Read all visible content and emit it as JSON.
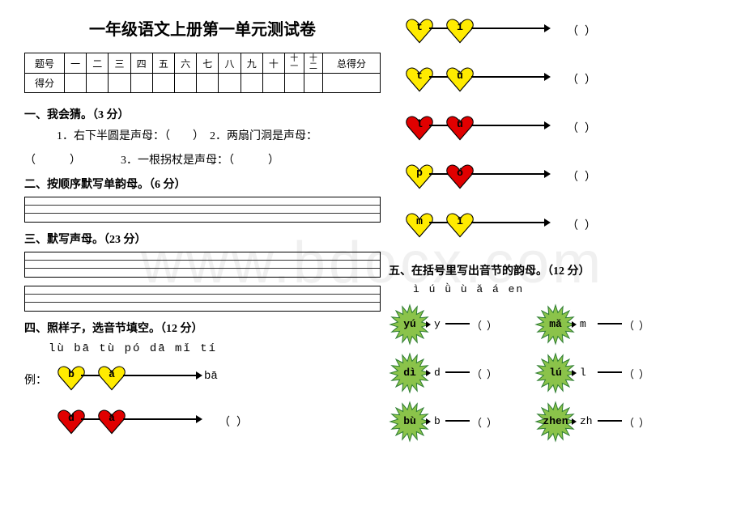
{
  "watermark": "www.bdocx.com",
  "title": "一年级语文上册第一单元测试卷",
  "score_table": {
    "row1": [
      "题号",
      "一",
      "二",
      "三",
      "四",
      "五",
      "六",
      "七",
      "八",
      "九",
      "十",
      "十\n一",
      "十\n二",
      "总得分"
    ],
    "row2_label": "得分"
  },
  "q1": {
    "title": "一、我会猜。（3 分）",
    "line1": "1．右下半圆是声母：（　　）　2．两扇门洞是声母：",
    "line2": "（　　　）　　　　3．一根拐杖是声母：（　　　）"
  },
  "q2": {
    "title": "二、按顺序默写单韵母。（6 分）"
  },
  "q3": {
    "title": "三、默写声母。（23 分）"
  },
  "q4": {
    "title": "四、照样子，选音节填空。（12 分）",
    "options": "lù   bā   tù   pó   dā   mǐ   tí",
    "example_label": "例：",
    "example": {
      "h1": "b",
      "h2": "ā",
      "result": "bā"
    },
    "rows": [
      {
        "h1": "d",
        "h2": "ā",
        "c1": "#e00000",
        "c2": "#e00000"
      },
      {
        "h1": "t",
        "h2": "í",
        "c1": "#ffeb00",
        "c2": "#ffeb00"
      },
      {
        "h1": "t",
        "h2": "ù",
        "c1": "#ffeb00",
        "c2": "#ffeb00"
      },
      {
        "h1": "l",
        "h2": "ù",
        "c1": "#e00000",
        "c2": "#e00000"
      },
      {
        "h1": "p",
        "h2": "ó",
        "c1": "#ffeb00",
        "c2": "#e00000"
      },
      {
        "h1": "m",
        "h2": "ǐ",
        "c1": "#ffeb00",
        "c2": "#ffeb00"
      }
    ]
  },
  "q5": {
    "title": "五、在括号里写出音节的韵母。（12 分）",
    "letters": "ì    ú    ǜ    ù    ǎ    á    en",
    "rows": [
      {
        "s1": "yú",
        "t1": "y",
        "s2": "mǎ",
        "t2": "m"
      },
      {
        "s1": "dì",
        "t1": "d",
        "s2": "lú",
        "t2": "l"
      },
      {
        "s1": "bù",
        "t1": "b",
        "s2": "zhen",
        "t2": "zh"
      }
    ]
  },
  "colors": {
    "heart_yellow": "#ffeb00",
    "heart_red": "#e00000",
    "star_green": "#8bc34a",
    "star_stroke": "#2e7d32"
  }
}
